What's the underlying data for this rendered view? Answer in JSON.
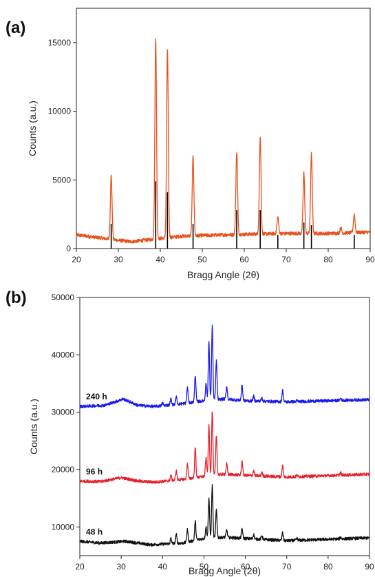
{
  "chart_data": [
    {
      "type": "line",
      "panel_label": "(a)",
      "xlabel": "Bragg Angle (2θ)",
      "ylabel": "Counts (a.u.)",
      "xlim": [
        20,
        90
      ],
      "ylim": [
        0,
        17500
      ],
      "xticks": [
        20,
        30,
        40,
        50,
        60,
        70,
        80,
        90
      ],
      "yticks": [
        0,
        5000,
        10000,
        15000
      ],
      "color": "#e8501c",
      "reference_color": "#000000",
      "baseline": [
        [
          20,
          1000
        ],
        [
          25,
          800
        ],
        [
          30,
          600
        ],
        [
          33,
          500
        ],
        [
          36,
          600
        ],
        [
          45,
          900
        ],
        [
          55,
          1000
        ],
        [
          70,
          1100
        ],
        [
          80,
          1100
        ],
        [
          90,
          1200
        ]
      ],
      "peaks": [
        {
          "x": 28.3,
          "y": 5300
        },
        {
          "x": 38.9,
          "y": 15400
        },
        {
          "x": 41.7,
          "y": 14500
        },
        {
          "x": 47.8,
          "y": 6700
        },
        {
          "x": 58.2,
          "y": 7100
        },
        {
          "x": 63.8,
          "y": 8200
        },
        {
          "x": 68.0,
          "y": 2300
        },
        {
          "x": 74.2,
          "y": 5500
        },
        {
          "x": 76.0,
          "y": 6900
        },
        {
          "x": 83.0,
          "y": 1500
        },
        {
          "x": 86.2,
          "y": 2500
        }
      ],
      "reference_lines": [
        {
          "x": 28.3,
          "y": 1800
        },
        {
          "x": 38.9,
          "y": 4900
        },
        {
          "x": 41.7,
          "y": 4100
        },
        {
          "x": 47.8,
          "y": 1800
        },
        {
          "x": 58.2,
          "y": 2800
        },
        {
          "x": 63.8,
          "y": 2800
        },
        {
          "x": 68.0,
          "y": 1000
        },
        {
          "x": 74.2,
          "y": 1900
        },
        {
          "x": 76.0,
          "y": 1700
        },
        {
          "x": 86.2,
          "y": 1000
        }
      ]
    },
    {
      "type": "line",
      "panel_label": "(b)",
      "xlabel": "Bragg Angle (2θ)",
      "ylabel": "Counts (a.u.)",
      "xlim": [
        20,
        90
      ],
      "ylim": [
        5000,
        50000
      ],
      "xticks": [
        20,
        30,
        40,
        50,
        60,
        70,
        80,
        90
      ],
      "yticks": [
        10000,
        20000,
        30000,
        40000,
        50000
      ],
      "series": [
        {
          "name": "48 h",
          "color": "#111111",
          "baseline": [
            [
              20,
              7500
            ],
            [
              25,
              7200
            ],
            [
              31,
              7500
            ],
            [
              37,
              6900
            ],
            [
              45,
              7200
            ],
            [
              50,
              8000
            ],
            [
              55,
              8200
            ],
            [
              60,
              8000
            ],
            [
              70,
              7600
            ],
            [
              90,
              8100
            ]
          ],
          "peaks": [
            [
              42,
              8000
            ],
            [
              43.3,
              8700
            ],
            [
              46,
              9500
            ],
            [
              47.9,
              11000
            ],
            [
              50.5,
              10000
            ],
            [
              51.2,
              15000
            ],
            [
              52.0,
              17200
            ],
            [
              53.0,
              13000
            ],
            [
              55.5,
              9500
            ],
            [
              59.2,
              9700
            ],
            [
              62,
              8700
            ],
            [
              64,
              8500
            ],
            [
              69,
              9000
            ],
            [
              72.5,
              8000
            ],
            [
              83,
              8200
            ]
          ]
        },
        {
          "name": "96 h",
          "color": "#e8202a",
          "baseline": [
            [
              20,
              18000
            ],
            [
              25,
              17900
            ],
            [
              30,
              18600
            ],
            [
              34,
              18000
            ],
            [
              38,
              17800
            ],
            [
              45,
              18300
            ],
            [
              50,
              18800
            ],
            [
              55,
              19200
            ],
            [
              60,
              19000
            ],
            [
              70,
              18700
            ],
            [
              90,
              19200
            ]
          ],
          "peaks": [
            [
              42,
              19000
            ],
            [
              43.3,
              19800
            ],
            [
              46,
              21000
            ],
            [
              47.9,
              23800
            ],
            [
              50.5,
              22000
            ],
            [
              51.2,
              27700
            ],
            [
              52.0,
              30300
            ],
            [
              53.0,
              26000
            ],
            [
              55.5,
              21000
            ],
            [
              59.2,
              21500
            ],
            [
              62,
              19800
            ],
            [
              64,
              19500
            ],
            [
              69,
              20700
            ],
            [
              72.5,
              19000
            ],
            [
              83,
              19500
            ]
          ]
        },
        {
          "name": "240 h",
          "color": "#1a1aee",
          "baseline": [
            [
              20,
              31000
            ],
            [
              26,
              31200
            ],
            [
              30.5,
              32300
            ],
            [
              34,
              31200
            ],
            [
              38,
              31000
            ],
            [
              45,
              31500
            ],
            [
              50,
              32000
            ],
            [
              55,
              32300
            ],
            [
              60,
              32000
            ],
            [
              70,
              31800
            ],
            [
              90,
              32200
            ]
          ],
          "peaks": [
            [
              40,
              31600
            ],
            [
              42,
              32300
            ],
            [
              43.3,
              32700
            ],
            [
              46,
              34300
            ],
            [
              47.9,
              36500
            ],
            [
              50.5,
              35000
            ],
            [
              51.2,
              42300
            ],
            [
              52.0,
              45000
            ],
            [
              53.0,
              39000
            ],
            [
              55.5,
              34500
            ],
            [
              59.2,
              34800
            ],
            [
              62,
              32800
            ],
            [
              64,
              32500
            ],
            [
              69,
              33800
            ],
            [
              72.5,
              32000
            ],
            [
              83,
              32400
            ]
          ]
        }
      ]
    }
  ]
}
